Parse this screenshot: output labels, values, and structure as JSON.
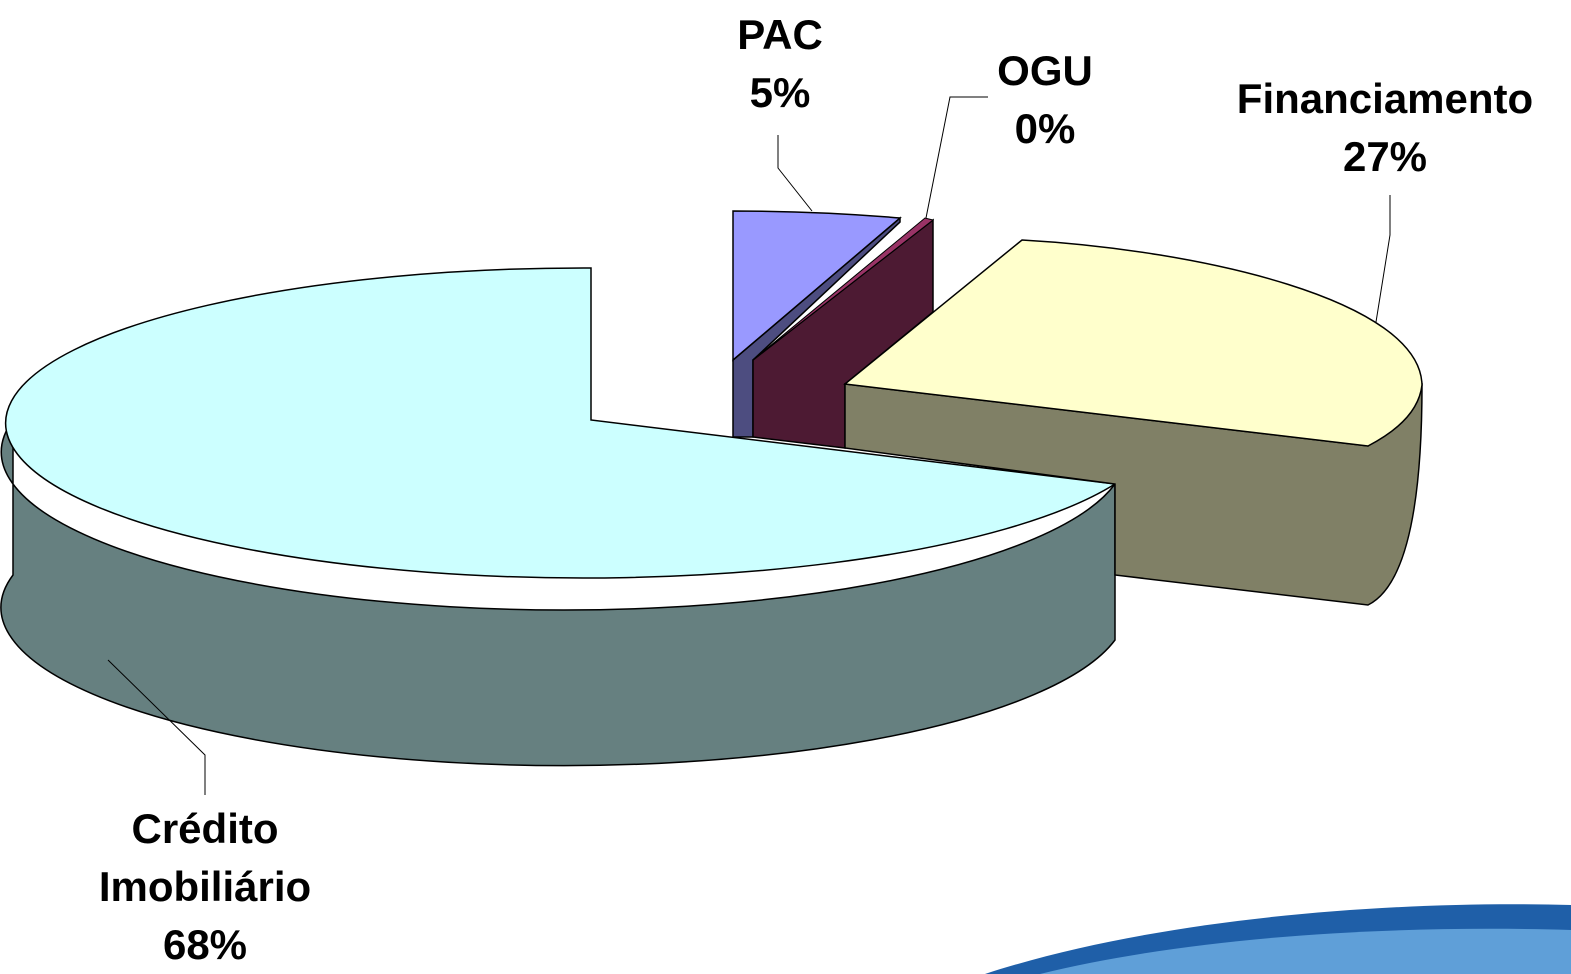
{
  "chart_data": {
    "type": "pie",
    "variant": "3d-exploded",
    "title": "",
    "slices": [
      {
        "label": "Crédito Imobiliário",
        "label_lines": [
          "Crédito",
          "Imobiliário"
        ],
        "percent_label": "68%",
        "value": 68,
        "top_color": "#ccffff",
        "side_color": "#668080"
      },
      {
        "label": "PAC",
        "label_lines": [
          "PAC"
        ],
        "percent_label": "5%",
        "value": 5,
        "top_color": "#9999ff",
        "side_color": "#4d4d80"
      },
      {
        "label": "OGU",
        "label_lines": [
          "OGU"
        ],
        "percent_label": "0%",
        "value": 0,
        "top_color": "#993366",
        "side_color": "#4d1a33"
      },
      {
        "label": "Financiamento",
        "label_lines": [
          "Financiamento"
        ],
        "percent_label": "27%",
        "value": 27,
        "top_color": "#ffffcc",
        "side_color": "#808066"
      }
    ],
    "legend": "none"
  }
}
